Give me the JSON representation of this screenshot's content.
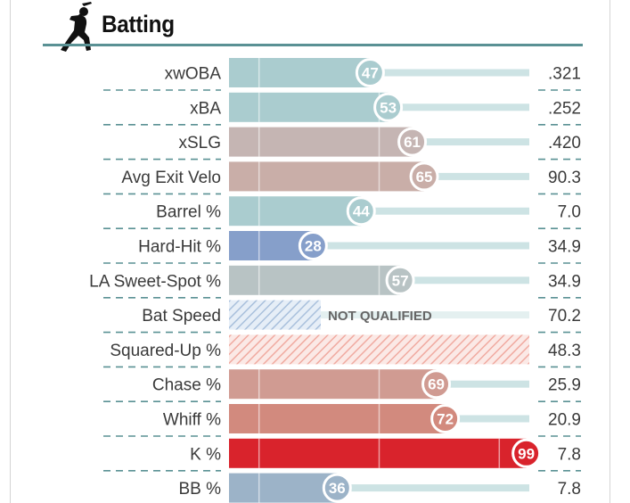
{
  "section": {
    "title": "Batting",
    "icon": "baseball-batter-icon"
  },
  "colors": {
    "accent_rule": "#5a9194",
    "track": "#cde3e4",
    "low": "#325aa5",
    "mid": "#b8c3c4",
    "high": "#d62728"
  },
  "chart_data": {
    "type": "bar",
    "orientation": "horizontal",
    "title": "Batting",
    "scale": [
      0,
      100
    ],
    "metrics": [
      {
        "label": "xwOBA",
        "percentile": 47,
        "value": ".321",
        "color": "#aacccf"
      },
      {
        "label": "xBA",
        "percentile": 53,
        "value": ".252",
        "color": "#aacccf"
      },
      {
        "label": "xSLG",
        "percentile": 61,
        "value": ".420",
        "color": "#c5b5b3"
      },
      {
        "label": "Avg Exit Velo",
        "percentile": 65,
        "value": "90.3",
        "color": "#c9aea8"
      },
      {
        "label": "Barrel %",
        "percentile": 44,
        "value": "7.0",
        "color": "#aacccf"
      },
      {
        "label": "Hard-Hit %",
        "percentile": 28,
        "value": "34.9",
        "color": "#869fca"
      },
      {
        "label": "LA Sweet-Spot %",
        "percentile": 57,
        "value": "34.9",
        "color": "#b8c3c4"
      },
      {
        "label": "Bat Speed",
        "percentile": null,
        "value": "70.2",
        "status": "NOT QUALIFIED",
        "pattern": "blue"
      },
      {
        "label": "Squared-Up %",
        "percentile": null,
        "value": "48.3",
        "pattern": "red"
      },
      {
        "label": "Chase %",
        "percentile": 69,
        "value": "25.9",
        "color": "#d09b92"
      },
      {
        "label": "Whiff %",
        "percentile": 72,
        "value": "20.9",
        "color": "#d28a7e"
      },
      {
        "label": "K %",
        "percentile": 99,
        "value": "7.8",
        "color": "#d9232c"
      },
      {
        "label": "BB %",
        "percentile": 36,
        "value": "7.8",
        "color": "#9cb3c8"
      }
    ]
  }
}
